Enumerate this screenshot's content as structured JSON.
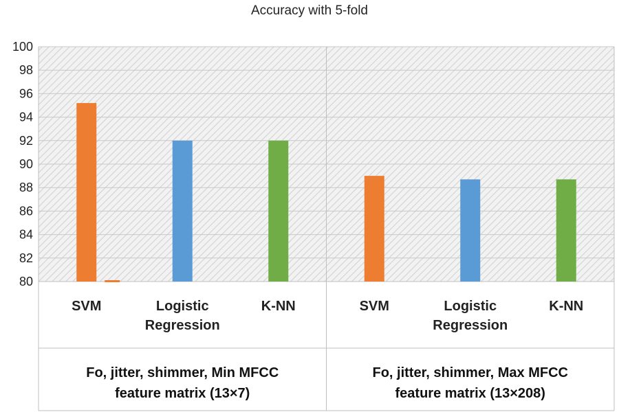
{
  "chart_data": {
    "type": "bar",
    "title": "Accuracy with 5-fold",
    "ylim": [
      80,
      100
    ],
    "yticks": [
      80,
      82,
      84,
      86,
      88,
      90,
      92,
      94,
      96,
      98,
      100
    ],
    "grid": true,
    "legend": "none",
    "colors": {
      "svm": "#ED7D31",
      "logistic": "#5B9BD5",
      "knn": "#70AD47"
    },
    "groups": [
      {
        "label_lines": [
          "Fo, jitter, shimmer, Min MFCC",
          "feature matrix (13×7)"
        ],
        "bars": [
          {
            "label_lines": [
              "SVM"
            ],
            "value": 95.2,
            "color_key": "svm"
          },
          {
            "label_lines": [
              "Logistic",
              "Regression"
            ],
            "value": 92.0,
            "color_key": "logistic"
          },
          {
            "label_lines": [
              "K-NN"
            ],
            "value": 92.0,
            "color_key": "knn"
          }
        ]
      },
      {
        "label_lines": [
          "Fo, jitter, shimmer, Max MFCC",
          "feature matrix (13×208)"
        ],
        "bars": [
          {
            "label_lines": [
              "SVM"
            ],
            "value": 89.0,
            "color_key": "svm"
          },
          {
            "label_lines": [
              "Logistic",
              "Regression"
            ],
            "value": 88.7,
            "color_key": "logistic"
          },
          {
            "label_lines": [
              "K-NN"
            ],
            "value": 88.7,
            "color_key": "knn"
          }
        ]
      }
    ]
  }
}
